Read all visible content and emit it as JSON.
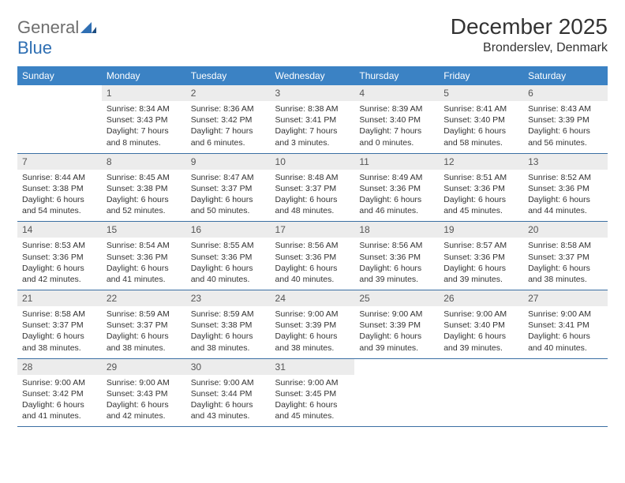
{
  "brand": {
    "part1": "General",
    "part2": "Blue"
  },
  "title": "December 2025",
  "location": "Bronderslev, Denmark",
  "colors": {
    "header_bg": "#3b82c4",
    "header_text": "#ffffff",
    "daynum_bg": "#ececec",
    "row_divider": "#3b6fa3",
    "brand_gray": "#6e6e6e",
    "brand_blue": "#2f6fb3",
    "text": "#333333",
    "page_bg": "#ffffff"
  },
  "day_headers": [
    "Sunday",
    "Monday",
    "Tuesday",
    "Wednesday",
    "Thursday",
    "Friday",
    "Saturday"
  ],
  "weeks": [
    [
      {
        "num": "",
        "sunrise": "",
        "sunset": "",
        "daylight": ""
      },
      {
        "num": "1",
        "sunrise": "Sunrise: 8:34 AM",
        "sunset": "Sunset: 3:43 PM",
        "daylight": "Daylight: 7 hours and 8 minutes."
      },
      {
        "num": "2",
        "sunrise": "Sunrise: 8:36 AM",
        "sunset": "Sunset: 3:42 PM",
        "daylight": "Daylight: 7 hours and 6 minutes."
      },
      {
        "num": "3",
        "sunrise": "Sunrise: 8:38 AM",
        "sunset": "Sunset: 3:41 PM",
        "daylight": "Daylight: 7 hours and 3 minutes."
      },
      {
        "num": "4",
        "sunrise": "Sunrise: 8:39 AM",
        "sunset": "Sunset: 3:40 PM",
        "daylight": "Daylight: 7 hours and 0 minutes."
      },
      {
        "num": "5",
        "sunrise": "Sunrise: 8:41 AM",
        "sunset": "Sunset: 3:40 PM",
        "daylight": "Daylight: 6 hours and 58 minutes."
      },
      {
        "num": "6",
        "sunrise": "Sunrise: 8:43 AM",
        "sunset": "Sunset: 3:39 PM",
        "daylight": "Daylight: 6 hours and 56 minutes."
      }
    ],
    [
      {
        "num": "7",
        "sunrise": "Sunrise: 8:44 AM",
        "sunset": "Sunset: 3:38 PM",
        "daylight": "Daylight: 6 hours and 54 minutes."
      },
      {
        "num": "8",
        "sunrise": "Sunrise: 8:45 AM",
        "sunset": "Sunset: 3:38 PM",
        "daylight": "Daylight: 6 hours and 52 minutes."
      },
      {
        "num": "9",
        "sunrise": "Sunrise: 8:47 AM",
        "sunset": "Sunset: 3:37 PM",
        "daylight": "Daylight: 6 hours and 50 minutes."
      },
      {
        "num": "10",
        "sunrise": "Sunrise: 8:48 AM",
        "sunset": "Sunset: 3:37 PM",
        "daylight": "Daylight: 6 hours and 48 minutes."
      },
      {
        "num": "11",
        "sunrise": "Sunrise: 8:49 AM",
        "sunset": "Sunset: 3:36 PM",
        "daylight": "Daylight: 6 hours and 46 minutes."
      },
      {
        "num": "12",
        "sunrise": "Sunrise: 8:51 AM",
        "sunset": "Sunset: 3:36 PM",
        "daylight": "Daylight: 6 hours and 45 minutes."
      },
      {
        "num": "13",
        "sunrise": "Sunrise: 8:52 AM",
        "sunset": "Sunset: 3:36 PM",
        "daylight": "Daylight: 6 hours and 44 minutes."
      }
    ],
    [
      {
        "num": "14",
        "sunrise": "Sunrise: 8:53 AM",
        "sunset": "Sunset: 3:36 PM",
        "daylight": "Daylight: 6 hours and 42 minutes."
      },
      {
        "num": "15",
        "sunrise": "Sunrise: 8:54 AM",
        "sunset": "Sunset: 3:36 PM",
        "daylight": "Daylight: 6 hours and 41 minutes."
      },
      {
        "num": "16",
        "sunrise": "Sunrise: 8:55 AM",
        "sunset": "Sunset: 3:36 PM",
        "daylight": "Daylight: 6 hours and 40 minutes."
      },
      {
        "num": "17",
        "sunrise": "Sunrise: 8:56 AM",
        "sunset": "Sunset: 3:36 PM",
        "daylight": "Daylight: 6 hours and 40 minutes."
      },
      {
        "num": "18",
        "sunrise": "Sunrise: 8:56 AM",
        "sunset": "Sunset: 3:36 PM",
        "daylight": "Daylight: 6 hours and 39 minutes."
      },
      {
        "num": "19",
        "sunrise": "Sunrise: 8:57 AM",
        "sunset": "Sunset: 3:36 PM",
        "daylight": "Daylight: 6 hours and 39 minutes."
      },
      {
        "num": "20",
        "sunrise": "Sunrise: 8:58 AM",
        "sunset": "Sunset: 3:37 PM",
        "daylight": "Daylight: 6 hours and 38 minutes."
      }
    ],
    [
      {
        "num": "21",
        "sunrise": "Sunrise: 8:58 AM",
        "sunset": "Sunset: 3:37 PM",
        "daylight": "Daylight: 6 hours and 38 minutes."
      },
      {
        "num": "22",
        "sunrise": "Sunrise: 8:59 AM",
        "sunset": "Sunset: 3:37 PM",
        "daylight": "Daylight: 6 hours and 38 minutes."
      },
      {
        "num": "23",
        "sunrise": "Sunrise: 8:59 AM",
        "sunset": "Sunset: 3:38 PM",
        "daylight": "Daylight: 6 hours and 38 minutes."
      },
      {
        "num": "24",
        "sunrise": "Sunrise: 9:00 AM",
        "sunset": "Sunset: 3:39 PM",
        "daylight": "Daylight: 6 hours and 38 minutes."
      },
      {
        "num": "25",
        "sunrise": "Sunrise: 9:00 AM",
        "sunset": "Sunset: 3:39 PM",
        "daylight": "Daylight: 6 hours and 39 minutes."
      },
      {
        "num": "26",
        "sunrise": "Sunrise: 9:00 AM",
        "sunset": "Sunset: 3:40 PM",
        "daylight": "Daylight: 6 hours and 39 minutes."
      },
      {
        "num": "27",
        "sunrise": "Sunrise: 9:00 AM",
        "sunset": "Sunset: 3:41 PM",
        "daylight": "Daylight: 6 hours and 40 minutes."
      }
    ],
    [
      {
        "num": "28",
        "sunrise": "Sunrise: 9:00 AM",
        "sunset": "Sunset: 3:42 PM",
        "daylight": "Daylight: 6 hours and 41 minutes."
      },
      {
        "num": "29",
        "sunrise": "Sunrise: 9:00 AM",
        "sunset": "Sunset: 3:43 PM",
        "daylight": "Daylight: 6 hours and 42 minutes."
      },
      {
        "num": "30",
        "sunrise": "Sunrise: 9:00 AM",
        "sunset": "Sunset: 3:44 PM",
        "daylight": "Daylight: 6 hours and 43 minutes."
      },
      {
        "num": "31",
        "sunrise": "Sunrise: 9:00 AM",
        "sunset": "Sunset: 3:45 PM",
        "daylight": "Daylight: 6 hours and 45 minutes."
      },
      {
        "num": "",
        "sunrise": "",
        "sunset": "",
        "daylight": ""
      },
      {
        "num": "",
        "sunrise": "",
        "sunset": "",
        "daylight": ""
      },
      {
        "num": "",
        "sunrise": "",
        "sunset": "",
        "daylight": ""
      }
    ]
  ]
}
